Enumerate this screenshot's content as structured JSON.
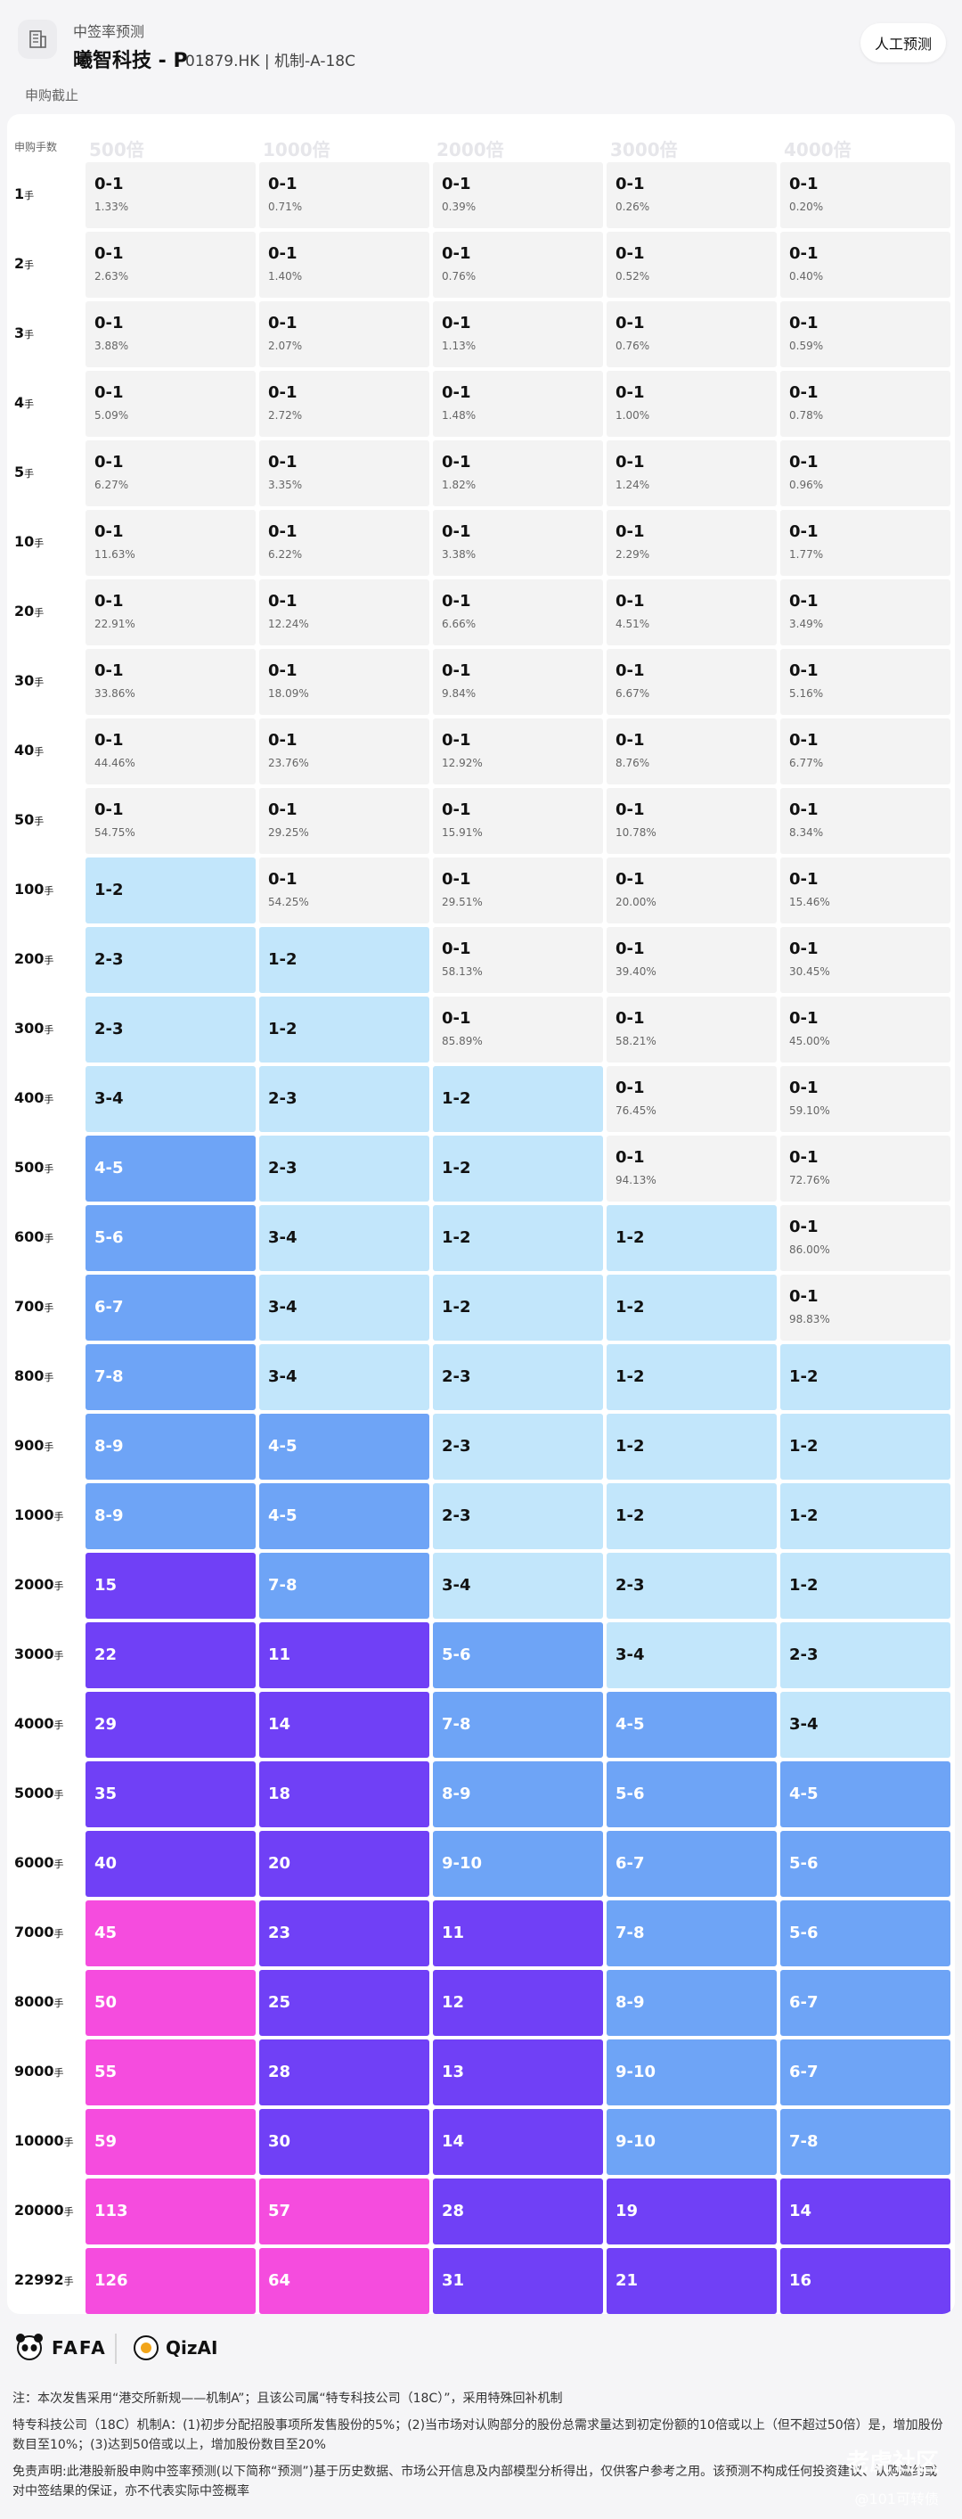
{
  "header": {
    "category": "中签率预测",
    "stock_name": "曦智科技 - P",
    "stock_code": "01879.HK | 机制-A-18C",
    "manual_button": "人工预测",
    "status": "申购截止"
  },
  "table": {
    "row_header": "申购手数",
    "unit": "手",
    "columns": [
      "500倍",
      "1000倍",
      "2000倍",
      "3000倍",
      "4000倍"
    ],
    "rows": [
      {
        "label": "1",
        "cells": [
          {
            "v": "0-1",
            "p": "1.33%"
          },
          {
            "v": "0-1",
            "p": "0.71%"
          },
          {
            "v": "0-1",
            "p": "0.39%"
          },
          {
            "v": "0-1",
            "p": "0.26%"
          },
          {
            "v": "0-1",
            "p": "0.20%"
          }
        ]
      },
      {
        "label": "2",
        "cells": [
          {
            "v": "0-1",
            "p": "2.63%"
          },
          {
            "v": "0-1",
            "p": "1.40%"
          },
          {
            "v": "0-1",
            "p": "0.76%"
          },
          {
            "v": "0-1",
            "p": "0.52%"
          },
          {
            "v": "0-1",
            "p": "0.40%"
          }
        ]
      },
      {
        "label": "3",
        "cells": [
          {
            "v": "0-1",
            "p": "3.88%"
          },
          {
            "v": "0-1",
            "p": "2.07%"
          },
          {
            "v": "0-1",
            "p": "1.13%"
          },
          {
            "v": "0-1",
            "p": "0.76%"
          },
          {
            "v": "0-1",
            "p": "0.59%"
          }
        ]
      },
      {
        "label": "4",
        "cells": [
          {
            "v": "0-1",
            "p": "5.09%"
          },
          {
            "v": "0-1",
            "p": "2.72%"
          },
          {
            "v": "0-1",
            "p": "1.48%"
          },
          {
            "v": "0-1",
            "p": "1.00%"
          },
          {
            "v": "0-1",
            "p": "0.78%"
          }
        ]
      },
      {
        "label": "5",
        "cells": [
          {
            "v": "0-1",
            "p": "6.27%"
          },
          {
            "v": "0-1",
            "p": "3.35%"
          },
          {
            "v": "0-1",
            "p": "1.82%"
          },
          {
            "v": "0-1",
            "p": "1.24%"
          },
          {
            "v": "0-1",
            "p": "0.96%"
          }
        ]
      },
      {
        "label": "10",
        "cells": [
          {
            "v": "0-1",
            "p": "11.63%"
          },
          {
            "v": "0-1",
            "p": "6.22%"
          },
          {
            "v": "0-1",
            "p": "3.38%"
          },
          {
            "v": "0-1",
            "p": "2.29%"
          },
          {
            "v": "0-1",
            "p": "1.77%"
          }
        ]
      },
      {
        "label": "20",
        "cells": [
          {
            "v": "0-1",
            "p": "22.91%"
          },
          {
            "v": "0-1",
            "p": "12.24%"
          },
          {
            "v": "0-1",
            "p": "6.66%"
          },
          {
            "v": "0-1",
            "p": "4.51%"
          },
          {
            "v": "0-1",
            "p": "3.49%"
          }
        ]
      },
      {
        "label": "30",
        "cells": [
          {
            "v": "0-1",
            "p": "33.86%"
          },
          {
            "v": "0-1",
            "p": "18.09%"
          },
          {
            "v": "0-1",
            "p": "9.84%"
          },
          {
            "v": "0-1",
            "p": "6.67%"
          },
          {
            "v": "0-1",
            "p": "5.16%"
          }
        ]
      },
      {
        "label": "40",
        "cells": [
          {
            "v": "0-1",
            "p": "44.46%"
          },
          {
            "v": "0-1",
            "p": "23.76%"
          },
          {
            "v": "0-1",
            "p": "12.92%"
          },
          {
            "v": "0-1",
            "p": "8.76%"
          },
          {
            "v": "0-1",
            "p": "6.77%"
          }
        ]
      },
      {
        "label": "50",
        "cells": [
          {
            "v": "0-1",
            "p": "54.75%"
          },
          {
            "v": "0-1",
            "p": "29.25%"
          },
          {
            "v": "0-1",
            "p": "15.91%"
          },
          {
            "v": "0-1",
            "p": "10.78%"
          },
          {
            "v": "0-1",
            "p": "8.34%"
          }
        ]
      },
      {
        "label": "100",
        "cells": [
          {
            "v": "1-2",
            "c": "l1"
          },
          {
            "v": "0-1",
            "p": "54.25%"
          },
          {
            "v": "0-1",
            "p": "29.51%"
          },
          {
            "v": "0-1",
            "p": "20.00%"
          },
          {
            "v": "0-1",
            "p": "15.46%"
          }
        ]
      },
      {
        "label": "200",
        "cells": [
          {
            "v": "2-3",
            "c": "l1"
          },
          {
            "v": "1-2",
            "c": "l1"
          },
          {
            "v": "0-1",
            "p": "58.13%"
          },
          {
            "v": "0-1",
            "p": "39.40%"
          },
          {
            "v": "0-1",
            "p": "30.45%"
          }
        ]
      },
      {
        "label": "300",
        "cells": [
          {
            "v": "2-3",
            "c": "l1"
          },
          {
            "v": "1-2",
            "c": "l1"
          },
          {
            "v": "0-1",
            "p": "85.89%"
          },
          {
            "v": "0-1",
            "p": "58.21%"
          },
          {
            "v": "0-1",
            "p": "45.00%"
          }
        ]
      },
      {
        "label": "400",
        "cells": [
          {
            "v": "3-4",
            "c": "l1"
          },
          {
            "v": "2-3",
            "c": "l1"
          },
          {
            "v": "1-2",
            "c": "l1"
          },
          {
            "v": "0-1",
            "p": "76.45%"
          },
          {
            "v": "0-1",
            "p": "59.10%"
          }
        ]
      },
      {
        "label": "500",
        "cells": [
          {
            "v": "4-5",
            "c": "l2"
          },
          {
            "v": "2-3",
            "c": "l1"
          },
          {
            "v": "1-2",
            "c": "l1"
          },
          {
            "v": "0-1",
            "p": "94.13%"
          },
          {
            "v": "0-1",
            "p": "72.76%"
          }
        ]
      },
      {
        "label": "600",
        "cells": [
          {
            "v": "5-6",
            "c": "l2"
          },
          {
            "v": "3-4",
            "c": "l1"
          },
          {
            "v": "1-2",
            "c": "l1"
          },
          {
            "v": "1-2",
            "c": "l1"
          },
          {
            "v": "0-1",
            "p": "86.00%"
          }
        ]
      },
      {
        "label": "700",
        "cells": [
          {
            "v": "6-7",
            "c": "l2"
          },
          {
            "v": "3-4",
            "c": "l1"
          },
          {
            "v": "1-2",
            "c": "l1"
          },
          {
            "v": "1-2",
            "c": "l1"
          },
          {
            "v": "0-1",
            "p": "98.83%"
          }
        ]
      },
      {
        "label": "800",
        "cells": [
          {
            "v": "7-8",
            "c": "l2"
          },
          {
            "v": "3-4",
            "c": "l1"
          },
          {
            "v": "2-3",
            "c": "l1"
          },
          {
            "v": "1-2",
            "c": "l1"
          },
          {
            "v": "1-2",
            "c": "l1"
          }
        ]
      },
      {
        "label": "900",
        "cells": [
          {
            "v": "8-9",
            "c": "l2"
          },
          {
            "v": "4-5",
            "c": "l2"
          },
          {
            "v": "2-3",
            "c": "l1"
          },
          {
            "v": "1-2",
            "c": "l1"
          },
          {
            "v": "1-2",
            "c": "l1"
          }
        ]
      },
      {
        "label": "1000",
        "cells": [
          {
            "v": "8-9",
            "c": "l2"
          },
          {
            "v": "4-5",
            "c": "l2"
          },
          {
            "v": "2-3",
            "c": "l1"
          },
          {
            "v": "1-2",
            "c": "l1"
          },
          {
            "v": "1-2",
            "c": "l1"
          }
        ]
      },
      {
        "label": "2000",
        "cells": [
          {
            "v": "15",
            "c": "l3"
          },
          {
            "v": "7-8",
            "c": "l2"
          },
          {
            "v": "3-4",
            "c": "l1"
          },
          {
            "v": "2-3",
            "c": "l1"
          },
          {
            "v": "1-2",
            "c": "l1"
          }
        ]
      },
      {
        "label": "3000",
        "cells": [
          {
            "v": "22",
            "c": "l3"
          },
          {
            "v": "11",
            "c": "l3"
          },
          {
            "v": "5-6",
            "c": "l2"
          },
          {
            "v": "3-4",
            "c": "l1"
          },
          {
            "v": "2-3",
            "c": "l1"
          }
        ]
      },
      {
        "label": "4000",
        "cells": [
          {
            "v": "29",
            "c": "l3"
          },
          {
            "v": "14",
            "c": "l3"
          },
          {
            "v": "7-8",
            "c": "l2"
          },
          {
            "v": "4-5",
            "c": "l2"
          },
          {
            "v": "3-4",
            "c": "l1"
          }
        ]
      },
      {
        "label": "5000",
        "cells": [
          {
            "v": "35",
            "c": "l3"
          },
          {
            "v": "18",
            "c": "l3"
          },
          {
            "v": "8-9",
            "c": "l2"
          },
          {
            "v": "5-6",
            "c": "l2"
          },
          {
            "v": "4-5",
            "c": "l2"
          }
        ]
      },
      {
        "label": "6000",
        "cells": [
          {
            "v": "40",
            "c": "l3"
          },
          {
            "v": "20",
            "c": "l3"
          },
          {
            "v": "9-10",
            "c": "l2"
          },
          {
            "v": "6-7",
            "c": "l2"
          },
          {
            "v": "5-6",
            "c": "l2"
          }
        ]
      },
      {
        "label": "7000",
        "cells": [
          {
            "v": "45",
            "c": "l4"
          },
          {
            "v": "23",
            "c": "l3"
          },
          {
            "v": "11",
            "c": "l3"
          },
          {
            "v": "7-8",
            "c": "l2"
          },
          {
            "v": "5-6",
            "c": "l2"
          }
        ]
      },
      {
        "label": "8000",
        "cells": [
          {
            "v": "50",
            "c": "l4"
          },
          {
            "v": "25",
            "c": "l3"
          },
          {
            "v": "12",
            "c": "l3"
          },
          {
            "v": "8-9",
            "c": "l2"
          },
          {
            "v": "6-7",
            "c": "l2"
          }
        ]
      },
      {
        "label": "9000",
        "cells": [
          {
            "v": "55",
            "c": "l4"
          },
          {
            "v": "28",
            "c": "l3"
          },
          {
            "v": "13",
            "c": "l3"
          },
          {
            "v": "9-10",
            "c": "l2"
          },
          {
            "v": "6-7",
            "c": "l2"
          }
        ]
      },
      {
        "label": "10000",
        "cells": [
          {
            "v": "59",
            "c": "l4"
          },
          {
            "v": "30",
            "c": "l3"
          },
          {
            "v": "14",
            "c": "l3"
          },
          {
            "v": "9-10",
            "c": "l2"
          },
          {
            "v": "7-8",
            "c": "l2"
          }
        ]
      },
      {
        "label": "20000",
        "cells": [
          {
            "v": "113",
            "c": "l4"
          },
          {
            "v": "57",
            "c": "l4"
          },
          {
            "v": "28",
            "c": "l3"
          },
          {
            "v": "19",
            "c": "l3"
          },
          {
            "v": "14",
            "c": "l3"
          }
        ]
      },
      {
        "label": "22992",
        "cells": [
          {
            "v": "126",
            "c": "l4"
          },
          {
            "v": "64",
            "c": "l4"
          },
          {
            "v": "31",
            "c": "l3"
          },
          {
            "v": "21",
            "c": "l3"
          },
          {
            "v": "16",
            "c": "l3"
          }
        ]
      }
    ]
  },
  "colors": {
    "l1": "#c2e6fb",
    "l2": "#6ea4f6",
    "l3": "#7040f6",
    "l4": "#f54cde",
    "light": "#f3f3f3"
  },
  "logos": {
    "brand1": "FAFA",
    "brand2": "QizAI"
  },
  "footer": {
    "note": "注：本次发售采用“港交所新规——机制A”；且该公司属“特专科技公司（18C）”，采用特殊回补机制",
    "mechanism": "特专科技公司（18C）机制A：(1)初步分配招股事项所发售股份的5%；(2)当市场对认购部分的股份总需求量达到初定份额的10倍或以上（但不超过50倍）是，增加股份数目至10%；(3)达到50倍或以上，增加股份数目至20%",
    "disclaimer": "免责声明:此港股新股申购中签率预测(以下简称“预测”)基于历史数据、市场公开信息及内部模型分析得出，仅供客户参考之用。该预测不构成任何投资建议、认购邀约或对中签结果的保证，亦不代表实际中签概率"
  },
  "watermark": {
    "line1": "老虎社区",
    "line2": "@101可转债"
  }
}
